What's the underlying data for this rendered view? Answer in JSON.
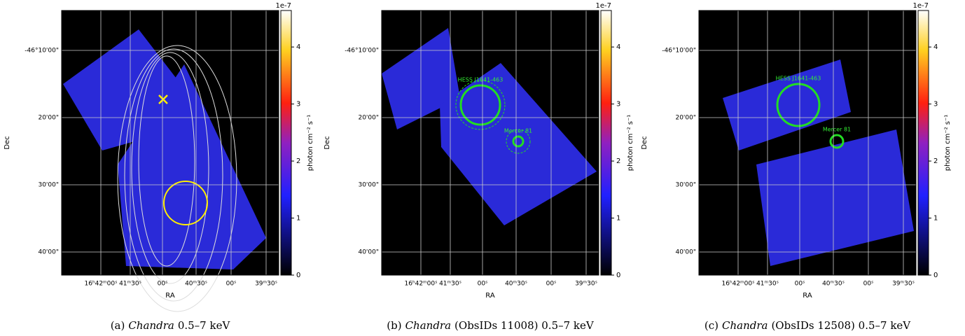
{
  "panels": [
    {
      "caption_label": "(a)",
      "caption_instrument": "Chandra",
      "caption_rest": "0.5–7 keV",
      "x_label": "RA",
      "y_label": "Dec",
      "x_ticks": [
        "16ʰ42ᵐ00ˢ",
        "41ᵐ30ˢ",
        "00ˢ",
        "40ᵐ30ˢ",
        "00ˢ",
        "39ᵐ30ˢ"
      ],
      "y_ticks": [
        "-46°10'00\"",
        "20'00\"",
        "30'00\"",
        "40'00\""
      ],
      "colorbar": {
        "label": "photon cm⁻² s⁻¹",
        "offset": "1e-7",
        "lim": [
          0,
          4.64
        ],
        "ticks": [
          0,
          1,
          2,
          3,
          4
        ]
      }
    },
    {
      "caption_label": "(b)",
      "caption_instrument": "Chandra",
      "caption_rest": "(ObsIDs 11008) 0.5–7 keV",
      "x_label": "RA",
      "y_label": "Dec",
      "x_ticks": [
        "16ʰ42ᵐ00ˢ",
        "41ᵐ30ˢ",
        "00ˢ",
        "40ᵐ30ˢ",
        "00ˢ",
        "39ᵐ30ˢ"
      ],
      "y_ticks": [
        "-46°10'00\"",
        "20'00\"",
        "30'00\"",
        "40'00\""
      ],
      "annotations": [
        "HESS J1641-463",
        "Mercer 81"
      ],
      "colorbar": {
        "label": "photon cm⁻² s⁻¹",
        "offset": "1e-7",
        "lim": [
          0,
          4.64
        ],
        "ticks": [
          0,
          1,
          2,
          3,
          4
        ]
      }
    },
    {
      "caption_label": "(c)",
      "caption_instrument": "Chandra",
      "caption_rest": "(ObsIDs 12508) 0.5–7 keV",
      "x_label": "RA",
      "y_label": "Dec",
      "x_ticks": [
        "16ʰ42ᵐ00ˢ",
        "41ᵐ30ˢ",
        "00ˢ",
        "40ᵐ30ˢ",
        "00ˢ",
        "39ᵐ30ˢ"
      ],
      "y_ticks": [
        "-46°10'00\"",
        "20'00\"",
        "30'00\"",
        "40'00\""
      ],
      "annotations": [
        "HESS J1641-463",
        "Mercer 81"
      ],
      "colorbar": {
        "label": "photon cm⁻² s⁻¹",
        "offset": "1e-7",
        "lim": [
          0,
          4.64
        ],
        "ticks": [
          0,
          1,
          2,
          3,
          4
        ]
      }
    }
  ]
}
